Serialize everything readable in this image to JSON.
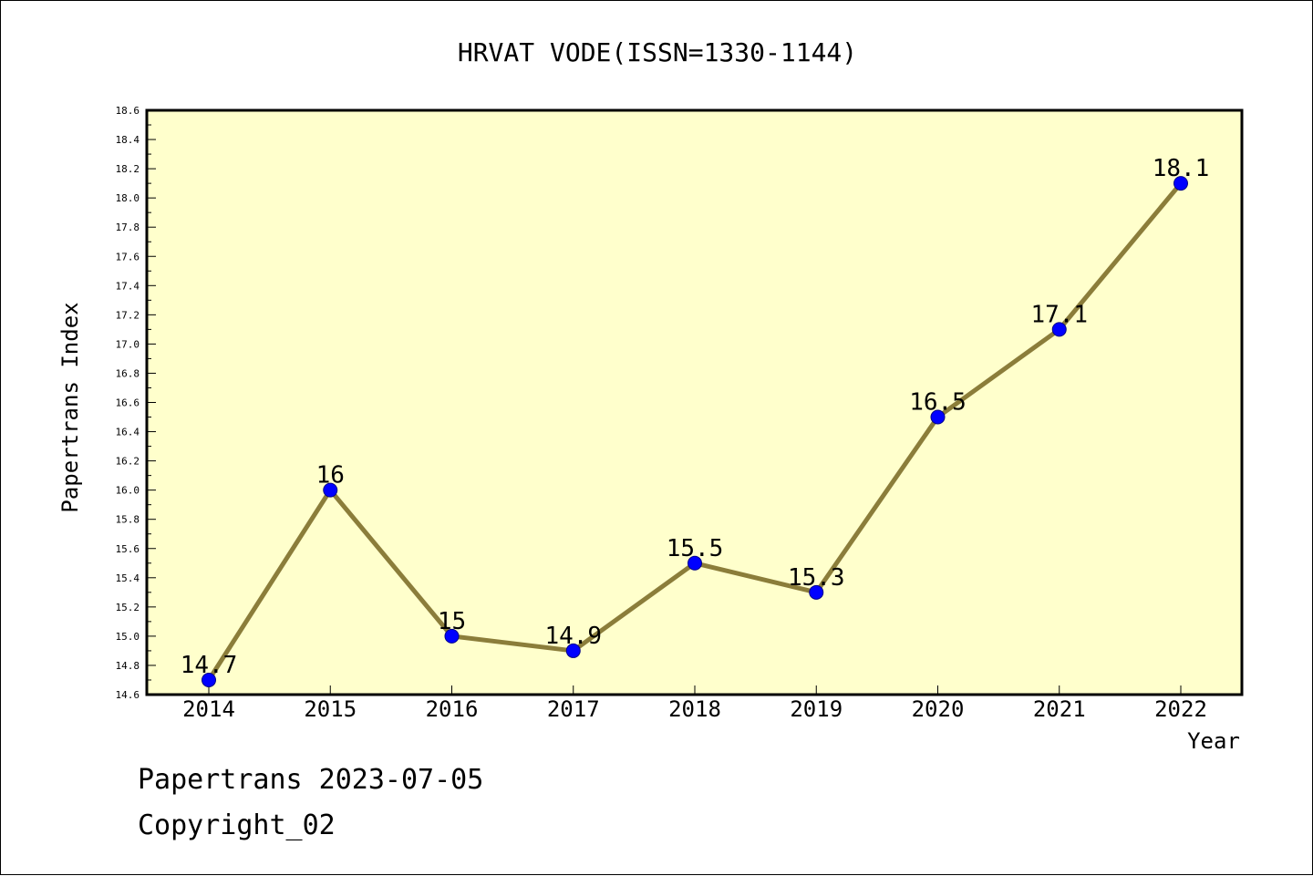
{
  "chart_data": {
    "type": "line",
    "title": "HRVAT VODE(ISSN=1330-1144)",
    "xlabel": "Year",
    "ylabel": "Papertrans Index",
    "x": [
      "2014",
      "2015",
      "2016",
      "2017",
      "2018",
      "2019",
      "2020",
      "2021",
      "2022"
    ],
    "values": [
      14.7,
      16,
      15,
      14.9,
      15.5,
      15.3,
      16.5,
      17.1,
      18.1
    ],
    "data_labels": [
      "14.7",
      "16",
      "15",
      "14.9",
      "15.5",
      "15.3",
      "16.5",
      "17.1",
      "18.1"
    ],
    "ylim": [
      14.6,
      18.6
    ],
    "y_ticks": [
      "14.6",
      "14.8",
      "15.0",
      "15.2",
      "15.4",
      "15.6",
      "15.8",
      "16.0",
      "16.2",
      "16.4",
      "16.6",
      "16.8",
      "17.0",
      "17.2",
      "17.4",
      "17.6",
      "17.8",
      "18.0",
      "18.2",
      "18.4",
      "18.6"
    ],
    "grid": false,
    "colors": {
      "plot_background": "#ffffcc",
      "line": "#8b7d3a",
      "marker": "#0000ff"
    }
  },
  "footer": {
    "line1": "Papertrans 2023-07-05",
    "line2": "Copyright_02"
  }
}
